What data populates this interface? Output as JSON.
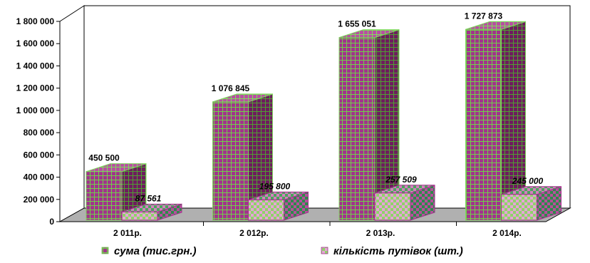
{
  "chart_data": {
    "type": "bar",
    "categories": [
      "2 011р.",
      "2 012р.",
      "2 013р.",
      "2 014р."
    ],
    "series": [
      {
        "name": "сума (тис.грн.)",
        "values": [
          450500,
          1076845,
          1655051,
          1727873
        ],
        "labels": [
          "450 500",
          "1 076 845",
          "1 655 051",
          "1 727 873"
        ],
        "color": "#a2338c"
      },
      {
        "name": "кількість путівок (шт.)",
        "values": [
          87561,
          195800,
          257509,
          245000
        ],
        "labels": [
          "87 561",
          "195 800",
          "257 509",
          "245 000"
        ],
        "color": "#d98ec6"
      }
    ],
    "yticks": [
      "0",
      "200 000",
      "400 000",
      "600 000",
      "800 000",
      "1 000 000",
      "1 200 000",
      "1 400 000",
      "1 600 000",
      "1 800 000"
    ],
    "ylim": [
      0,
      1800000
    ],
    "grid": false,
    "legend": "bottom",
    "three_d": true
  }
}
